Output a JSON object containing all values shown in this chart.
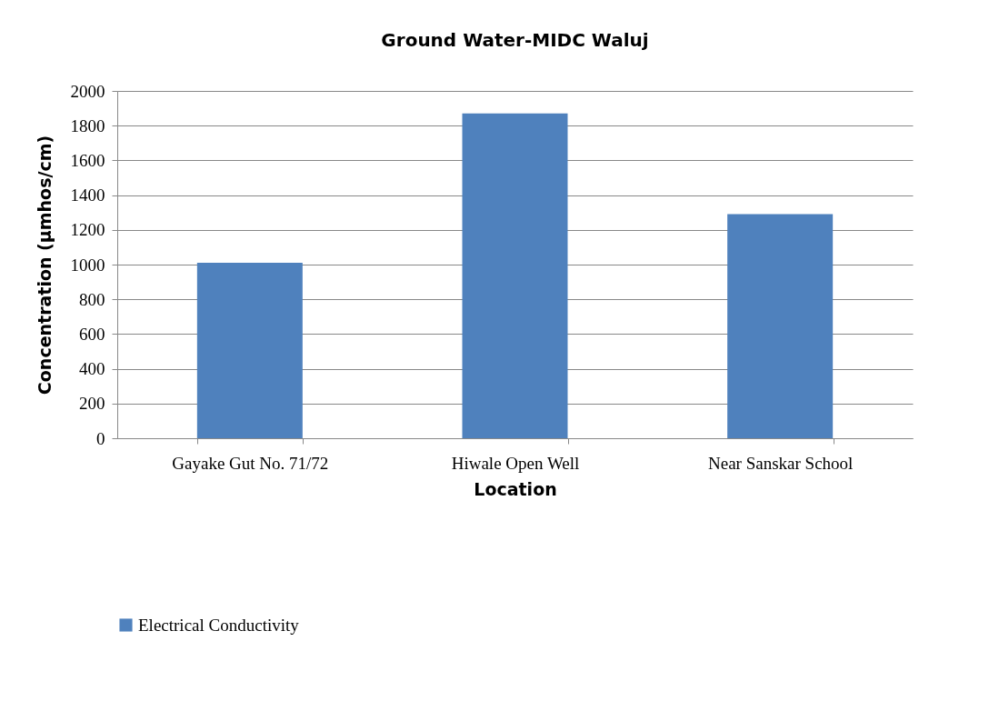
{
  "chart_data": {
    "type": "bar",
    "title": "Ground Water-MIDC Waluj",
    "xlabel": "Location",
    "ylabel": "Concentration (µmhos/cm)",
    "categories": [
      "Gayake Gut No. 71/72",
      "Hiwale Open Well",
      "Near Sanskar School"
    ],
    "series": [
      {
        "name": "Electrical Conductivity",
        "color": "#4f81bd",
        "values": [
          1010,
          1870,
          1290
        ]
      }
    ],
    "ylim": [
      0,
      2000
    ],
    "yticks": [
      0,
      200,
      400,
      600,
      800,
      1000,
      1200,
      1400,
      1600,
      1800,
      2000
    ],
    "grid": "y",
    "legend": "bottom"
  }
}
